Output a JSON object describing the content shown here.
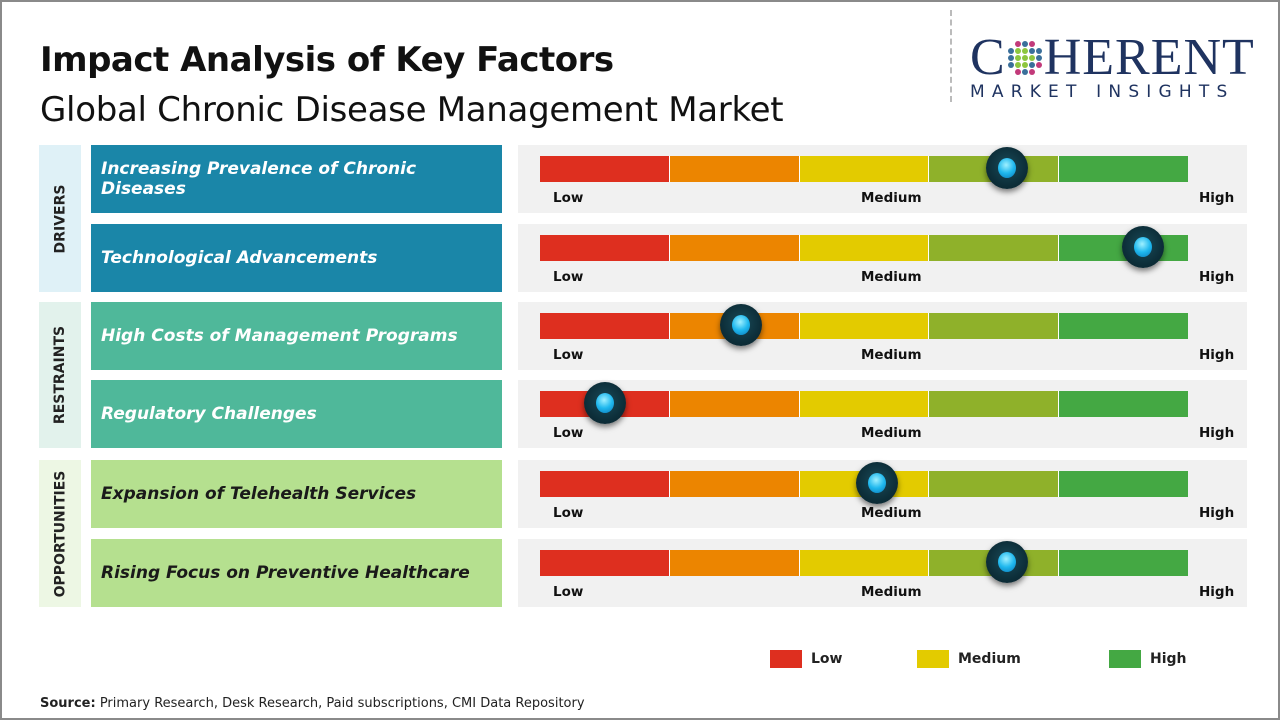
{
  "header": {
    "title": "Impact Analysis of Key Factors",
    "subtitle": "Global Chronic Disease Management Market"
  },
  "logo": {
    "line1": "COHERENT",
    "line2": "MARKET INSIGHTS"
  },
  "colors": {
    "scale": [
      "#de2f1f",
      "#ec8500",
      "#e3cb00",
      "#8fb12a",
      "#44a843"
    ],
    "drivers": "#1a86a8",
    "restraints": "#4fb89a",
    "opportunities": "#b5e08f"
  },
  "chart_data": {
    "type": "gauge-scale",
    "scale_labels": [
      "Low",
      "Medium",
      "High"
    ],
    "groups": [
      {
        "name": "DRIVERS",
        "color": "#1a86a8",
        "factors": [
          {
            "label": "Increasing Prevalence of Chronic Diseases",
            "impact": 0.72
          },
          {
            "label": "Technological Advancements",
            "impact": 0.93
          }
        ]
      },
      {
        "name": "RESTRAINTS",
        "color": "#4fb89a",
        "factors": [
          {
            "label": "High Costs of Management Programs",
            "impact": 0.31
          },
          {
            "label": "Regulatory Challenges",
            "impact": 0.1
          }
        ]
      },
      {
        "name": "OPPORTUNITIES",
        "color": "#b5e08f",
        "factors": [
          {
            "label": "Expansion of Telehealth Services",
            "impact": 0.52
          },
          {
            "label": "Rising Focus on Preventive Healthcare",
            "impact": 0.72
          }
        ]
      }
    ],
    "legend": [
      {
        "label": "Low",
        "color": "#de2f1f"
      },
      {
        "label": "Medium",
        "color": "#e3cb00"
      },
      {
        "label": "High",
        "color": "#44a843"
      }
    ]
  },
  "footer": {
    "source_label": "Source:",
    "source_text": " Primary Research, Desk Research, Paid subscriptions, CMI Data Repository"
  }
}
